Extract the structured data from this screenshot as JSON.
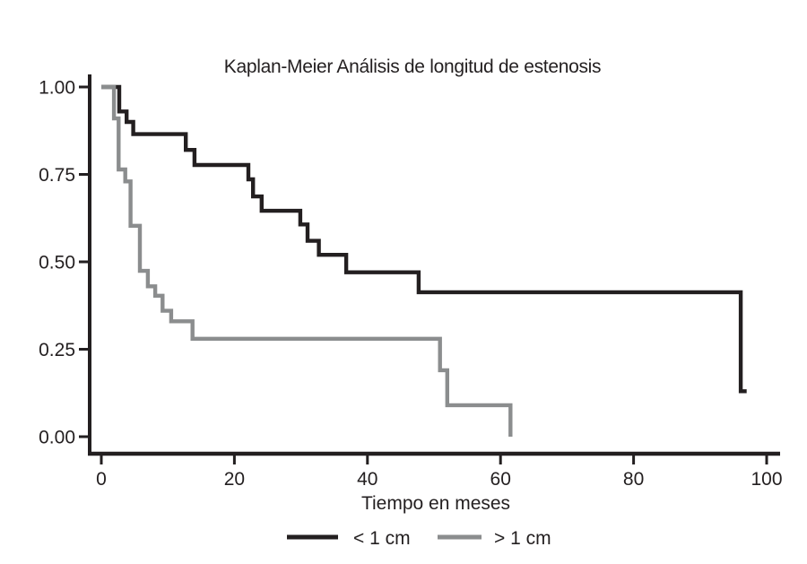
{
  "chart_data": {
    "type": "line",
    "subtype": "kaplan-meier-step",
    "title": "Kaplan-Meier Análisis de longitud de estenosis",
    "xlabel": "Tiempo en meses",
    "ylabel": "",
    "xlim": [
      0,
      100
    ],
    "ylim": [
      0.0,
      1.0
    ],
    "grid": false,
    "x_ticks": [
      {
        "value": 0,
        "label": "0"
      },
      {
        "value": 20,
        "label": "20"
      },
      {
        "value": 40,
        "label": "40"
      },
      {
        "value": 60,
        "label": "60"
      },
      {
        "value": 80,
        "label": "80"
      },
      {
        "value": 100,
        "label": "100"
      }
    ],
    "y_ticks": [
      {
        "value": 1.0,
        "label": "1.00"
      },
      {
        "value": 0.75,
        "label": "0.75"
      },
      {
        "value": 0.5,
        "label": "0.50"
      },
      {
        "value": 0.25,
        "label": "0.25"
      },
      {
        "value": 0.0,
        "label": "0.00"
      }
    ],
    "legend_position": "bottom-center",
    "series": [
      {
        "key": "lt-1cm",
        "name": "< 1 cm",
        "color": "#231f20",
        "points_t_survival": [
          [
            0,
            1.0
          ],
          [
            2.7,
            0.93
          ],
          [
            3.8,
            0.9
          ],
          [
            4.8,
            0.865
          ],
          [
            12.7,
            0.82
          ],
          [
            14.0,
            0.777
          ],
          [
            22.1,
            0.736
          ],
          [
            22.8,
            0.687
          ],
          [
            24.1,
            0.646
          ],
          [
            29.9,
            0.607
          ],
          [
            31.0,
            0.56
          ],
          [
            32.7,
            0.52
          ],
          [
            36.8,
            0.47
          ],
          [
            47.7,
            0.413
          ],
          [
            96.1,
            0.13
          ]
        ],
        "end_t": 97.0
      },
      {
        "key": "gt-1cm",
        "name": "> 1 cm",
        "color": "#8b8d8e",
        "points_t_survival": [
          [
            0,
            1.0
          ],
          [
            1.9,
            0.91
          ],
          [
            2.6,
            0.764
          ],
          [
            3.6,
            0.73
          ],
          [
            4.4,
            0.603
          ],
          [
            5.8,
            0.474
          ],
          [
            7.0,
            0.43
          ],
          [
            8.1,
            0.403
          ],
          [
            9.2,
            0.36
          ],
          [
            10.5,
            0.33
          ],
          [
            13.7,
            0.28
          ],
          [
            50.9,
            0.19
          ],
          [
            52.0,
            0.09
          ],
          [
            61.5,
            0.0
          ]
        ],
        "end_t": 61.5
      }
    ],
    "colors": {
      "axis": "#231f20",
      "text": "#231f20",
      "background": "#ffffff"
    }
  }
}
